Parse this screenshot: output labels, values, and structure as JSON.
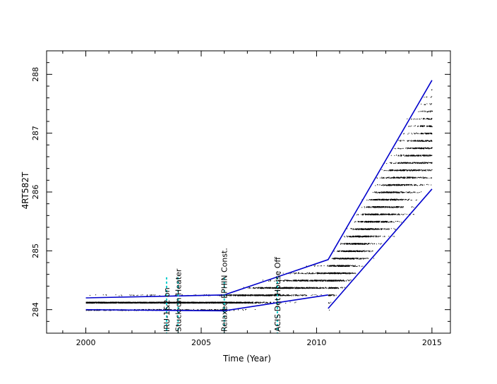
{
  "chart_data": {
    "type": "scatter",
    "title": "",
    "xlabel": "Time (Year)",
    "ylabel": "4RT582T",
    "xlim": [
      1998.3,
      2015.8
    ],
    "ylim": [
      283.6,
      288.4
    ],
    "x_ticks": [
      2000,
      2005,
      2010,
      2015
    ],
    "y_ticks": [
      284,
      285,
      286,
      287,
      288
    ],
    "grid": false,
    "legend": "none",
    "colors": {
      "points": "#000000",
      "trend_lines": "#0000cc",
      "event_markers": "#00cccc"
    },
    "event_markers": [
      {
        "x": 2003.5,
        "label": "IRU-1&2 on"
      },
      {
        "x": 2004.0,
        "label": "Stuck-on Heater"
      },
      {
        "x": 2006.0,
        "label": "Relaxed EPHIN Const."
      },
      {
        "x": 2008.3,
        "label": "ACIS Det House Off"
      }
    ],
    "trend_lines": [
      {
        "name": "upper",
        "x": [
          2000,
          2006,
          2010.5,
          2015
        ],
        "y": [
          284.2,
          284.25,
          284.85,
          287.9
        ]
      },
      {
        "name": "lower",
        "x": [
          2000,
          2006,
          2010.5
        ],
        "y": [
          284.0,
          283.98,
          284.25
        ]
      },
      {
        "name": "lower-late",
        "x": [
          2010.5,
          2015
        ],
        "y": [
          284.02,
          286.05
        ]
      }
    ],
    "data_density": [
      {
        "x": [
          2000,
          2003.5
        ],
        "y_center": 284.1,
        "y_spread": 0.12
      },
      {
        "x": [
          2003.5,
          2006
        ],
        "y_center": 284.1,
        "y_spread": 0.15
      },
      {
        "x": [
          2006,
          2008.3
        ],
        "y_center": 284.2,
        "y_spread": 0.2
      },
      {
        "x": [
          2008.3,
          2010.5
        ],
        "y_center": 284.5,
        "y_spread": 0.3
      },
      {
        "x": [
          2010.5,
          2012.5
        ],
        "y_center": 285.0,
        "y_spread": 0.45
      },
      {
        "x": [
          2012.5,
          2015
        ],
        "y_center": 286.6,
        "y_spread": 0.6
      }
    ]
  }
}
